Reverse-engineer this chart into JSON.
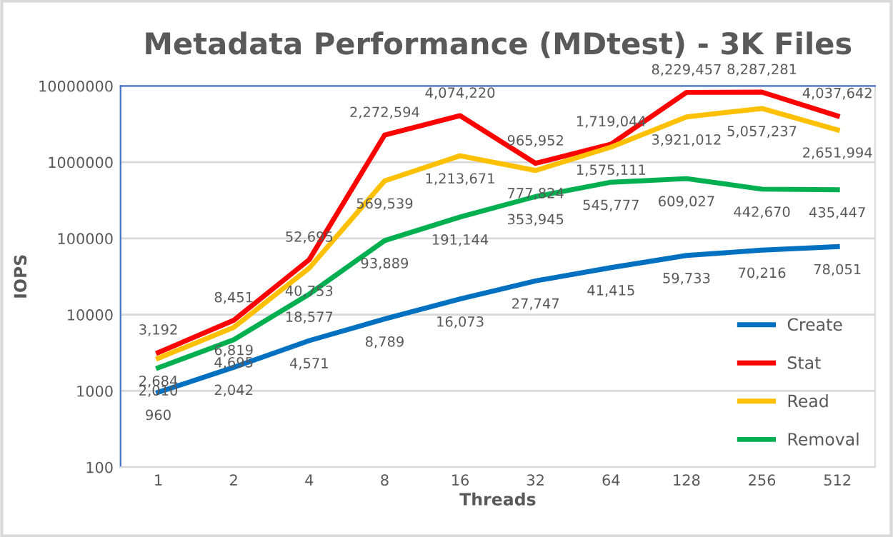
{
  "chart_data": {
    "type": "line",
    "title": "Metadata Performance (MDtest) - 3K Files",
    "xlabel": "Threads",
    "ylabel": "IOPS",
    "categories": [
      "1",
      "2",
      "4",
      "8",
      "16",
      "32",
      "64",
      "128",
      "256",
      "512"
    ],
    "series": [
      {
        "name": "Create",
        "color": "#0070c0",
        "values": [
          960,
          2042,
          4571,
          8789,
          16073,
          27747,
          41415,
          59733,
          70216,
          78051
        ],
        "value_labels": [
          "960",
          "2,042",
          "4,571",
          "8,789",
          "16,073",
          "27,747",
          "41,415",
          "59,733",
          "70,216",
          "78,051"
        ]
      },
      {
        "name": "Stat",
        "color": "#ff0000",
        "values": [
          3192,
          8451,
          52695,
          2272594,
          4074220,
          965952,
          1719044,
          8229457,
          8287281,
          4037642
        ],
        "value_labels": [
          "3,192",
          "8,451",
          "52,695",
          "2,272,594",
          "4,074,220",
          "965,952",
          "1,719,044",
          "8,229,457",
          "8,287,281",
          "4,037,642"
        ]
      },
      {
        "name": "Read",
        "color": "#ffc000",
        "values": [
          2684,
          6819,
          40753,
          569539,
          1213671,
          777824,
          1575111,
          3921012,
          5057237,
          2651994
        ],
        "value_labels": [
          "2,684",
          "6,819",
          "40,753",
          "569,539",
          "1,213,671",
          "777,824",
          "1,575,111",
          "3,921,012",
          "5,057,237",
          "2,651,994"
        ]
      },
      {
        "name": "Removal",
        "color": "#00b050",
        "values": [
          2010,
          4695,
          18577,
          93889,
          191144,
          353945,
          545777,
          609027,
          442670,
          435447
        ],
        "value_labels": [
          "2,010",
          "4,695",
          "18,577",
          "93,889",
          "191,144",
          "353,945",
          "545,777",
          "609,027",
          "442,670",
          "435,447"
        ]
      }
    ],
    "log": "y",
    "ylim": [
      100,
      10000000
    ],
    "yticks": [
      100,
      1000,
      10000,
      100000,
      1000000,
      10000000
    ],
    "grid": "y",
    "legend": "right",
    "marker": "none",
    "line_style": "solid"
  }
}
